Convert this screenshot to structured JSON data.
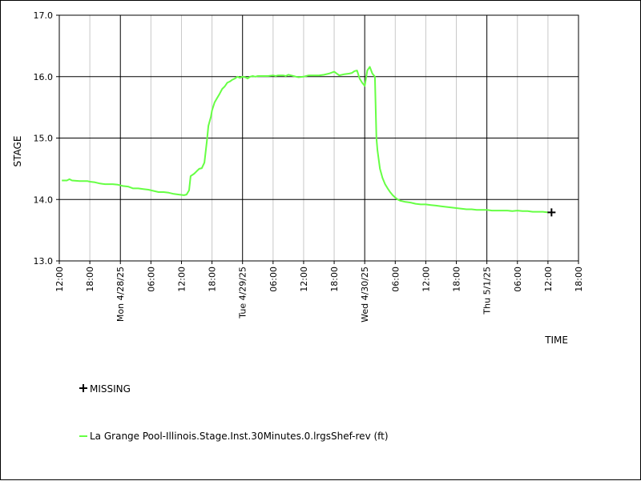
{
  "chart_data": {
    "type": "line",
    "xlabel": "TIME",
    "ylabel": "STAGE",
    "ylim": [
      13.0,
      17.0
    ],
    "y_ticks": [
      "13.0",
      "14.0",
      "15.0",
      "16.0",
      "17.0"
    ],
    "y_tick_values": [
      13.0,
      14.0,
      15.0,
      16.0,
      17.0
    ],
    "x_range_hours": [
      0,
      102
    ],
    "x_ticks": [
      {
        "h": 0,
        "label": "12:00",
        "major": false
      },
      {
        "h": 6,
        "label": "18:00",
        "major": false
      },
      {
        "h": 12,
        "label": "Mon 4/28/25",
        "major": true
      },
      {
        "h": 18,
        "label": "06:00",
        "major": false
      },
      {
        "h": 24,
        "label": "12:00",
        "major": false
      },
      {
        "h": 30,
        "label": "18:00",
        "major": false
      },
      {
        "h": 36,
        "label": "Tue 4/29/25",
        "major": true
      },
      {
        "h": 42,
        "label": "06:00",
        "major": false
      },
      {
        "h": 48,
        "label": "12:00",
        "major": false
      },
      {
        "h": 54,
        "label": "18:00",
        "major": false
      },
      {
        "h": 60,
        "label": "Wed 4/30/25",
        "major": true
      },
      {
        "h": 66,
        "label": "06:00",
        "major": false
      },
      {
        "h": 72,
        "label": "12:00",
        "major": false
      },
      {
        "h": 78,
        "label": "18:00",
        "major": false
      },
      {
        "h": 84,
        "label": "Thu 5/1/25",
        "major": true
      },
      {
        "h": 90,
        "label": "06:00",
        "major": false
      },
      {
        "h": 96,
        "label": "12:00",
        "major": false
      },
      {
        "h": 102,
        "label": "18:00",
        "major": false
      }
    ],
    "grid": true,
    "series": [
      {
        "name": "La Grange Pool-Illinois.Stage.Inst.30Minutes.0.lrgsShef-rev (ft)",
        "color": "#66ff44",
        "points": [
          [
            0.5,
            14.31
          ],
          [
            1.5,
            14.31
          ],
          [
            2.0,
            14.33
          ],
          [
            2.5,
            14.31
          ],
          [
            4.0,
            14.3
          ],
          [
            5.5,
            14.3
          ],
          [
            6.0,
            14.29
          ],
          [
            7.0,
            14.28
          ],
          [
            8.0,
            14.26
          ],
          [
            9.0,
            14.25
          ],
          [
            10.5,
            14.25
          ],
          [
            11.5,
            14.24
          ],
          [
            12.5,
            14.22
          ],
          [
            13.5,
            14.21
          ],
          [
            14.5,
            14.18
          ],
          [
            15.5,
            14.18
          ],
          [
            16.5,
            14.17
          ],
          [
            17.5,
            14.16
          ],
          [
            18.5,
            14.14
          ],
          [
            19.5,
            14.12
          ],
          [
            20.5,
            14.12
          ],
          [
            21.5,
            14.11
          ],
          [
            22.5,
            14.09
          ],
          [
            23.5,
            14.08
          ],
          [
            24.5,
            14.07
          ],
          [
            25.0,
            14.08
          ],
          [
            25.5,
            14.15
          ],
          [
            25.8,
            14.38
          ],
          [
            26.5,
            14.42
          ],
          [
            27.0,
            14.46
          ],
          [
            27.5,
            14.5
          ],
          [
            28.0,
            14.51
          ],
          [
            28.5,
            14.6
          ],
          [
            29.0,
            14.95
          ],
          [
            29.3,
            15.2
          ],
          [
            29.8,
            15.35
          ],
          [
            30.0,
            15.45
          ],
          [
            30.5,
            15.58
          ],
          [
            31.0,
            15.65
          ],
          [
            31.5,
            15.72
          ],
          [
            32.0,
            15.8
          ],
          [
            32.5,
            15.84
          ],
          [
            33.0,
            15.9
          ],
          [
            33.5,
            15.92
          ],
          [
            34.0,
            15.95
          ],
          [
            34.5,
            15.97
          ],
          [
            35.0,
            16.0
          ],
          [
            35.5,
            15.98
          ],
          [
            36.0,
            16.0
          ],
          [
            36.5,
            15.99
          ],
          [
            37.0,
            15.97
          ],
          [
            37.5,
            16.0
          ],
          [
            38.0,
            16.01
          ],
          [
            38.5,
            16.0
          ],
          [
            39.0,
            16.01
          ],
          [
            40.0,
            16.01
          ],
          [
            41.0,
            16.01
          ],
          [
            42.0,
            16.02
          ],
          [
            42.5,
            16.01
          ],
          [
            43.0,
            16.02
          ],
          [
            44.0,
            16.02
          ],
          [
            44.5,
            16.01
          ],
          [
            45.0,
            16.03
          ],
          [
            45.5,
            16.02
          ],
          [
            46.0,
            16.01
          ],
          [
            46.5,
            16.0
          ],
          [
            47.0,
            15.99
          ],
          [
            48.0,
            16.0
          ],
          [
            48.5,
            16.01
          ],
          [
            49.0,
            16.02
          ],
          [
            50.0,
            16.02
          ],
          [
            51.0,
            16.02
          ],
          [
            52.0,
            16.03
          ],
          [
            53.0,
            16.05
          ],
          [
            54.0,
            16.08
          ],
          [
            55.0,
            16.02
          ],
          [
            56.0,
            16.04
          ],
          [
            57.0,
            16.05
          ],
          [
            57.5,
            16.06
          ],
          [
            58.0,
            16.09
          ],
          [
            58.5,
            16.1
          ],
          [
            59.0,
            15.97
          ],
          [
            59.5,
            15.9
          ],
          [
            60.0,
            15.85
          ],
          [
            60.5,
            16.1
          ],
          [
            61.0,
            16.16
          ],
          [
            61.5,
            16.05
          ],
          [
            62.0,
            16.0
          ],
          [
            62.3,
            15.0
          ],
          [
            62.5,
            14.8
          ],
          [
            63.0,
            14.5
          ],
          [
            63.5,
            14.35
          ],
          [
            64.0,
            14.25
          ],
          [
            64.5,
            14.18
          ],
          [
            65.0,
            14.12
          ],
          [
            65.5,
            14.07
          ],
          [
            66.0,
            14.03
          ],
          [
            66.5,
            14.0
          ],
          [
            67.0,
            13.98
          ],
          [
            68.0,
            13.96
          ],
          [
            69.0,
            13.95
          ],
          [
            70.0,
            13.93
          ],
          [
            71.0,
            13.92
          ],
          [
            72.0,
            13.92
          ],
          [
            73.0,
            13.91
          ],
          [
            74.0,
            13.9
          ],
          [
            75.0,
            13.89
          ],
          [
            76.0,
            13.88
          ],
          [
            77.0,
            13.87
          ],
          [
            78.0,
            13.86
          ],
          [
            79.0,
            13.85
          ],
          [
            80.0,
            13.84
          ],
          [
            81.0,
            13.84
          ],
          [
            82.0,
            13.83
          ],
          [
            83.0,
            13.83
          ],
          [
            84.0,
            13.83
          ],
          [
            85.0,
            13.82
          ],
          [
            86.0,
            13.82
          ],
          [
            87.0,
            13.82
          ],
          [
            88.0,
            13.82
          ],
          [
            89.0,
            13.81
          ],
          [
            90.0,
            13.82
          ],
          [
            91.0,
            13.81
          ],
          [
            92.0,
            13.81
          ],
          [
            93.0,
            13.8
          ],
          [
            94.0,
            13.8
          ],
          [
            95.0,
            13.8
          ],
          [
            96.0,
            13.79
          ]
        ]
      }
    ],
    "missing_markers": [
      [
        96.7,
        13.79
      ]
    ]
  },
  "legend": {
    "missing_label": "MISSING",
    "series_label": "La Grange Pool-Illinois.Stage.Inst.30Minutes.0.lrgsShef-rev (ft)",
    "series_color": "#66ff44"
  }
}
